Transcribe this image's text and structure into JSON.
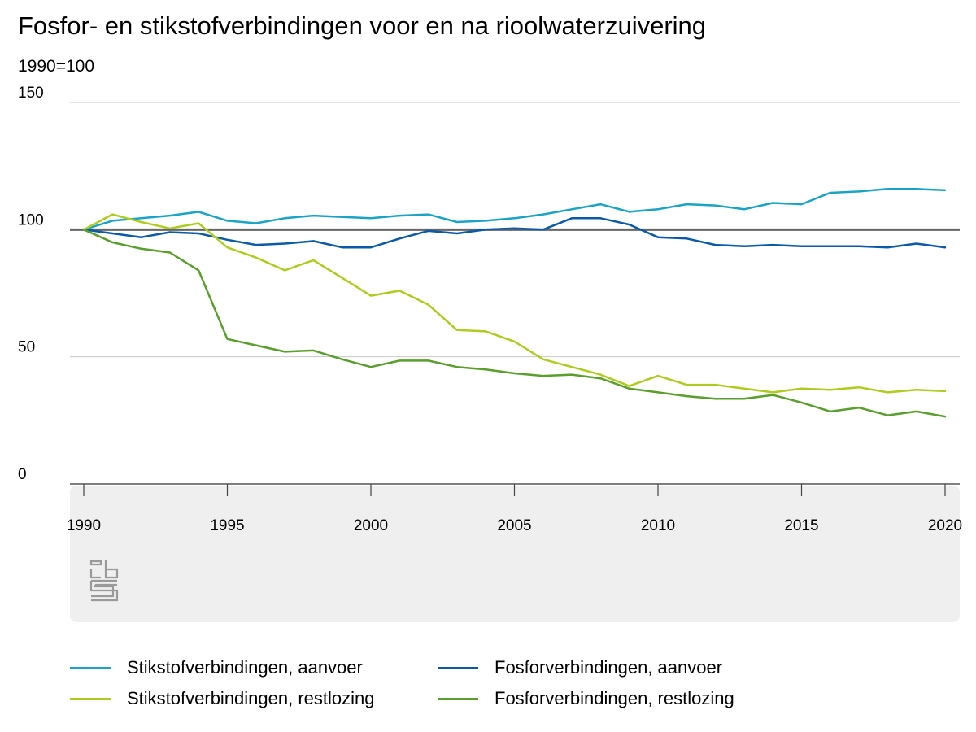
{
  "title": "Fosfor- en stikstofverbindingen voor en na rioolwaterzuivering",
  "subtitle": "1990=100",
  "colors": {
    "stikstof_aanvoer": "#1ba3c6",
    "fosfor_aanvoer": "#0c5aa6",
    "stikstof_restlozing": "#afcb1f",
    "fosfor_restlozing": "#5a9e2e",
    "reference": "#666666",
    "grid": "#c8c8c8",
    "panel": "#efefef"
  },
  "icons": {
    "logo": "cbs-logo-icon"
  },
  "chart_data": {
    "type": "line",
    "title": "Fosfor- en stikstofverbindingen voor en na rioolwaterzuivering",
    "ylabel": "1990=100",
    "xlabel": "",
    "ylim": [
      0,
      150
    ],
    "yticks": [
      0,
      50,
      100,
      150
    ],
    "xticks": [
      1990,
      1995,
      2000,
      2005,
      2010,
      2015,
      2020
    ],
    "xlim": [
      1990,
      2020
    ],
    "grid": true,
    "reference_line": 100,
    "legend_position": "bottom",
    "x": [
      1990,
      1991,
      1992,
      1993,
      1994,
      1995,
      1996,
      1997,
      1998,
      1999,
      2000,
      2001,
      2002,
      2003,
      2004,
      2005,
      2006,
      2007,
      2008,
      2009,
      2010,
      2011,
      2012,
      2013,
      2014,
      2015,
      2016,
      2017,
      2018,
      2019,
      2020
    ],
    "series": [
      {
        "name": "Stikstofverbindingen, aanvoer",
        "color_key": "stikstof_aanvoer",
        "values": [
          100,
          103.5,
          104.5,
          105.5,
          107,
          103.5,
          102.5,
          104.5,
          105.5,
          105,
          104.5,
          105.5,
          106,
          103,
          103.5,
          104.5,
          106,
          108,
          110,
          107,
          108,
          110,
          109.5,
          108,
          110.5,
          110,
          114.5,
          115,
          116,
          116,
          115.5
        ]
      },
      {
        "name": "Fosforverbindingen, aanvoer",
        "color_key": "fosfor_aanvoer",
        "values": [
          100,
          98.5,
          97,
          99,
          98.5,
          96,
          94,
          94.5,
          95.5,
          93,
          93,
          96.5,
          99.5,
          98.5,
          100,
          100.5,
          100,
          104.5,
          104.5,
          102,
          97,
          96.5,
          94,
          93.5,
          94,
          93.5,
          93.5,
          93.5,
          93,
          94.5,
          93
        ]
      },
      {
        "name": "Stikstofverbindingen, restlozing",
        "color_key": "stikstof_restlozing",
        "values": [
          100,
          106,
          103,
          100.5,
          102.5,
          93,
          89,
          84,
          88,
          81,
          74,
          76,
          70.5,
          60.5,
          60,
          56,
          49,
          46,
          43,
          38.5,
          42.5,
          39,
          39,
          37.5,
          36,
          37.5,
          37,
          38,
          36,
          37,
          36.5
        ]
      },
      {
        "name": "Fosforverbindingen, restlozing",
        "color_key": "fosfor_restlozing",
        "values": [
          100,
          95,
          92.5,
          91,
          84,
          57,
          54.5,
          52,
          52.5,
          49,
          46,
          48.5,
          48.5,
          46,
          45,
          43.5,
          42.5,
          43,
          41.5,
          37.5,
          36,
          34.5,
          33.5,
          33.5,
          35,
          32,
          28.5,
          30,
          27,
          28.5,
          26.5
        ]
      }
    ]
  },
  "legend": {
    "items": [
      {
        "label": "Stikstofverbindingen, aanvoer",
        "color_key": "stikstof_aanvoer"
      },
      {
        "label": "Fosforverbindingen, aanvoer",
        "color_key": "fosfor_aanvoer"
      },
      {
        "label": "Stikstofverbindingen, restlozing",
        "color_key": "stikstof_restlozing"
      },
      {
        "label": "Fosforverbindingen, restlozing",
        "color_key": "fosfor_restlozing"
      }
    ]
  }
}
